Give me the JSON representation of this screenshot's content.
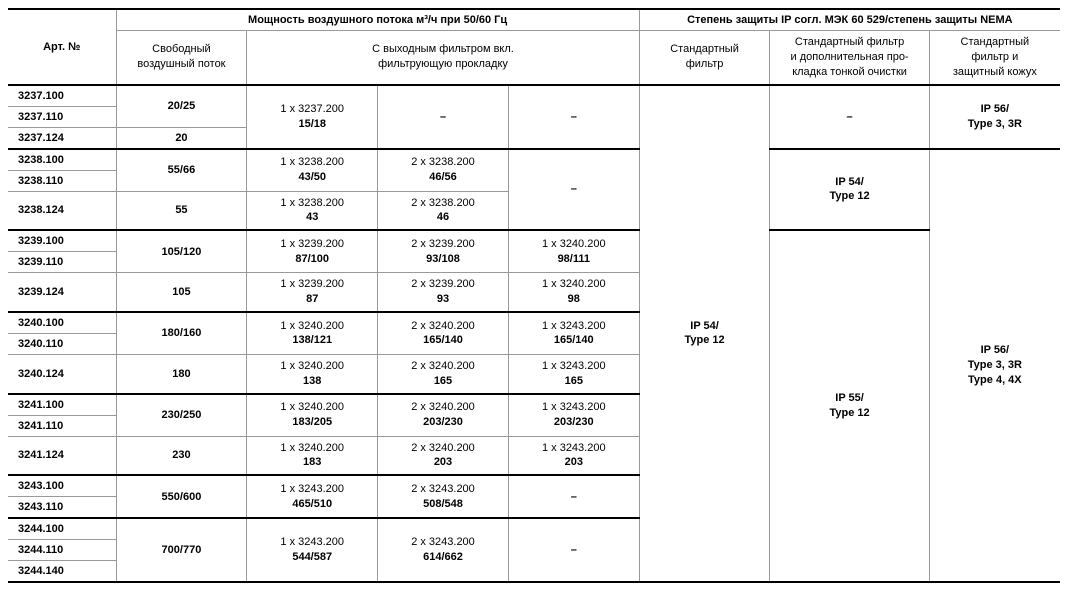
{
  "colWidthsPct": [
    9.5,
    11.5,
    11.5,
    11.5,
    11.5,
    11.5,
    14,
    11.5
  ],
  "headers": {
    "artNo": "Арт. №",
    "airflowGroup": "Мощность воздушного потока м³/ч при 50/60 Гц",
    "ipGroup": "Степень защиты IP согл. МЭК 60 529/степень защиты NEMA",
    "freeFlow": "Свободный\nвоздушный поток",
    "withFilterGroup": "С выходным фильтром вкл.\nфильтрующую прокладку",
    "stdFilter": "Стандартный\nфильтр",
    "stdFilterFine": "Стандартный фильтр\nи дополнительная про-\nкладка тонкой очистки",
    "stdFilterCover": "Стандартный\nфильтр и\nзащитный кожух"
  },
  "articles": [
    "3237.100",
    "3237.110",
    "3237.124",
    "3238.100",
    "3238.110",
    "3238.124",
    "3239.100",
    "3239.110",
    "3239.124",
    "3240.100",
    "3240.110",
    "3240.124",
    "3241.100",
    "3241.110",
    "3241.124",
    "3243.100",
    "3243.110",
    "3244.100",
    "3244.110",
    "3244.140"
  ],
  "freeFlow": {
    "g3237a": "20/25",
    "g3237b": "20",
    "g3238a": "55/66",
    "g3238b": "55",
    "g3239a": "105/120",
    "g3239b": "105",
    "g3240a": "180/160",
    "g3240b": "180",
    "g3241a": "230/250",
    "g3241b": "230",
    "g3243a": "550/600",
    "g3244a": "700/770"
  },
  "filters": {
    "g3237_c1_l1": "1 x 3237.200",
    "g3237_c1_l2": "15/18",
    "g3237_c2": "–",
    "g3237_c3": "–",
    "g3238a_c1_l1": "1 x 3238.200",
    "g3238a_c1_l2": "43/50",
    "g3238a_c2_l1": "2 x 3238.200",
    "g3238a_c2_l2": "46/56",
    "g3238_c3": "–",
    "g3238b_c1_l1": "1 x 3238.200",
    "g3238b_c1_l2": "43",
    "g3238b_c2_l1": "2 x 3238.200",
    "g3238b_c2_l2": "46",
    "g3239a_c1_l1": "1 x 3239.200",
    "g3239a_c1_l2": "87/100",
    "g3239a_c2_l1": "2 x 3239.200",
    "g3239a_c2_l2": "93/108",
    "g3239a_c3_l1": "1 x 3240.200",
    "g3239a_c3_l2": "98/111",
    "g3239b_c1_l1": "1 x 3239.200",
    "g3239b_c1_l2": "87",
    "g3239b_c2_l1": "2 x 3239.200",
    "g3239b_c2_l2": "93",
    "g3239b_c3_l1": "1 x 3240.200",
    "g3239b_c3_l2": "98",
    "g3240a_c1_l1": "1 x 3240.200",
    "g3240a_c1_l2": "138/121",
    "g3240a_c2_l1": "2 x 3240.200",
    "g3240a_c2_l2": "165/140",
    "g3240a_c3_l1": "1 x 3243.200",
    "g3240a_c3_l2": "165/140",
    "g3240b_c1_l1": "1 x 3240.200",
    "g3240b_c1_l2": "138",
    "g3240b_c2_l1": "2 x 3240.200",
    "g3240b_c2_l2": "165",
    "g3240b_c3_l1": "1 x 3243.200",
    "g3240b_c3_l2": "165",
    "g3241a_c1_l1": "1 x 3240.200",
    "g3241a_c1_l2": "183/205",
    "g3241a_c2_l1": "2 x 3240.200",
    "g3241a_c2_l2": "203/230",
    "g3241a_c3_l1": "1 x 3243.200",
    "g3241a_c3_l2": "203/230",
    "g3241b_c1_l1": "1 x 3240.200",
    "g3241b_c1_l2": "183",
    "g3241b_c2_l1": "2 x 3240.200",
    "g3241b_c2_l2": "203",
    "g3241b_c3_l1": "1 x 3243.200",
    "g3241b_c3_l2": "203",
    "g3243_c1_l1": "1 x 3243.200",
    "g3243_c1_l2": "465/510",
    "g3243_c2_l1": "2 x 3243.200",
    "g3243_c2_l2": "508/548",
    "g3243_c3": "–",
    "g3244_c1_l1": "1 x 3243.200",
    "g3244_c1_l2": "544/587",
    "g3244_c2_l1": "2 x 3243.200",
    "g3244_c2_l2": "614/662",
    "g3244_c3": "–"
  },
  "ip": {
    "stdFilter_l1": "IP 54/",
    "stdFilter_l2": "Type 12",
    "fine_dash": "–",
    "fine_3238_l1": "IP 54/",
    "fine_3238_l2": "Type 12",
    "fine_rest_l1": "IP 55/",
    "fine_rest_l2": "Type 12",
    "cover_3237_l1": "IP 56/",
    "cover_3237_l2": "Type 3, 3R",
    "cover_rest_l1": "IP 56/",
    "cover_rest_l2": "Type 3, 3R",
    "cover_rest_l3": "Type 4, 4X"
  }
}
